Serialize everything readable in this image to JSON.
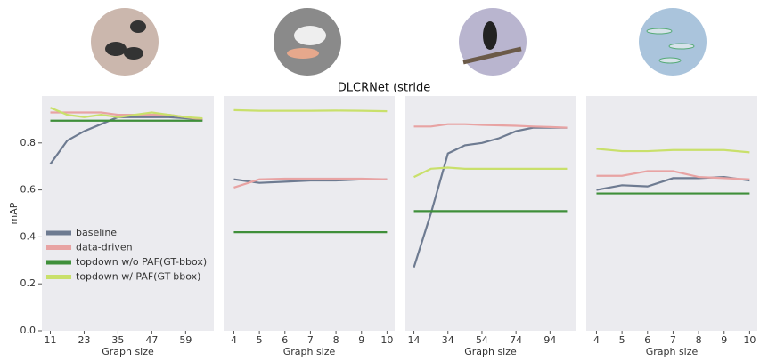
{
  "title": "DLCRNet   (stride",
  "chart_data": [
    {
      "type": "line",
      "xlabel": "Graph size",
      "ylabel": "mAP",
      "x": [
        11,
        17,
        23,
        29,
        35,
        41,
        47,
        53,
        59,
        65
      ],
      "xlim": [
        8,
        69
      ],
      "xticks": [
        11,
        23,
        35,
        47,
        59
      ],
      "ylim": [
        0,
        1
      ],
      "yticks": [
        {
          "value": 0,
          "label": "0.0"
        },
        0.2,
        0.4,
        0.6,
        0.8
      ],
      "legend": "lower left",
      "series": [
        {
          "name": "baseline",
          "color": "#6e7b91",
          "values": [
            0.71,
            0.81,
            0.85,
            0.88,
            0.91,
            0.91,
            0.91,
            0.91,
            0.905,
            0.9
          ]
        },
        {
          "name": "data-driven",
          "color": "#e8a3a3",
          "values": [
            0.93,
            0.93,
            0.93,
            0.93,
            0.92,
            0.92,
            0.92,
            0.92,
            0.91,
            0.9
          ]
        },
        {
          "name": "topdown w/o PAF(GT-bbox)",
          "color": "#3f8f3a",
          "values": [
            0.895,
            0.895,
            0.895,
            0.895,
            0.895,
            0.895,
            0.895,
            0.895,
            0.895,
            0.895
          ]
        },
        {
          "name": "topdown w/ PAF(GT-bbox)",
          "color": "#c9e06b",
          "values": [
            0.95,
            0.92,
            0.91,
            0.92,
            0.91,
            0.92,
            0.93,
            0.92,
            0.91,
            0.905
          ]
        }
      ]
    },
    {
      "type": "line",
      "xlabel": "Graph size",
      "x": [
        4,
        5,
        6,
        7,
        8,
        9,
        10
      ],
      "xlim": [
        3.6,
        10.3
      ],
      "xticks": [
        4,
        5,
        6,
        7,
        8,
        9,
        10
      ],
      "series": [
        {
          "color": "#6e7b91",
          "values": [
            0.645,
            0.63,
            0.635,
            0.64,
            0.64,
            0.645,
            0.645
          ]
        },
        {
          "color": "#e8a3a3",
          "values": [
            0.61,
            0.645,
            0.648,
            0.648,
            0.648,
            0.648,
            0.645
          ]
        },
        {
          "color": "#3f8f3a",
          "values": [
            0.42,
            0.42,
            0.42,
            0.42,
            0.42,
            0.42,
            0.42
          ]
        },
        {
          "color": "#c9e06b",
          "values": [
            0.94,
            0.937,
            0.937,
            0.937,
            0.938,
            0.937,
            0.935
          ]
        }
      ]
    },
    {
      "type": "line",
      "xlabel": "Graph size",
      "x": [
        14,
        24,
        34,
        44,
        54,
        64,
        74,
        84,
        94,
        104
      ],
      "xlim": [
        9,
        109
      ],
      "xticks": [
        14,
        34,
        54,
        74,
        94
      ],
      "series": [
        {
          "color": "#6e7b91",
          "values": [
            0.27,
            0.5,
            0.755,
            0.79,
            0.8,
            0.82,
            0.85,
            0.865,
            0.865,
            0.865
          ]
        },
        {
          "color": "#e8a3a3",
          "values": [
            0.87,
            0.87,
            0.88,
            0.88,
            0.877,
            0.875,
            0.873,
            0.87,
            0.868,
            0.865
          ]
        },
        {
          "color": "#3f8f3a",
          "values": [
            0.51,
            0.51,
            0.51,
            0.51,
            0.51,
            0.51,
            0.51,
            0.51,
            0.51,
            0.51
          ]
        },
        {
          "color": "#c9e06b",
          "values": [
            0.655,
            0.69,
            0.695,
            0.69,
            0.69,
            0.69,
            0.69,
            0.69,
            0.69,
            0.69
          ]
        }
      ]
    },
    {
      "type": "line",
      "xlabel": "Graph size",
      "x": [
        4,
        5,
        6,
        7,
        8,
        9,
        10
      ],
      "xlim": [
        3.6,
        10.3
      ],
      "xticks": [
        4,
        5,
        6,
        7,
        8,
        9,
        10
      ],
      "series": [
        {
          "color": "#6e7b91",
          "values": [
            0.6,
            0.62,
            0.615,
            0.65,
            0.65,
            0.655,
            0.64
          ]
        },
        {
          "color": "#e8a3a3",
          "values": [
            0.66,
            0.66,
            0.68,
            0.68,
            0.655,
            0.65,
            0.645
          ]
        },
        {
          "color": "#3f8f3a",
          "values": [
            0.585,
            0.585,
            0.585,
            0.585,
            0.585,
            0.585,
            0.585
          ]
        },
        {
          "color": "#c9e06b",
          "values": [
            0.775,
            0.765,
            0.765,
            0.77,
            0.77,
            0.77,
            0.76
          ]
        }
      ]
    }
  ]
}
